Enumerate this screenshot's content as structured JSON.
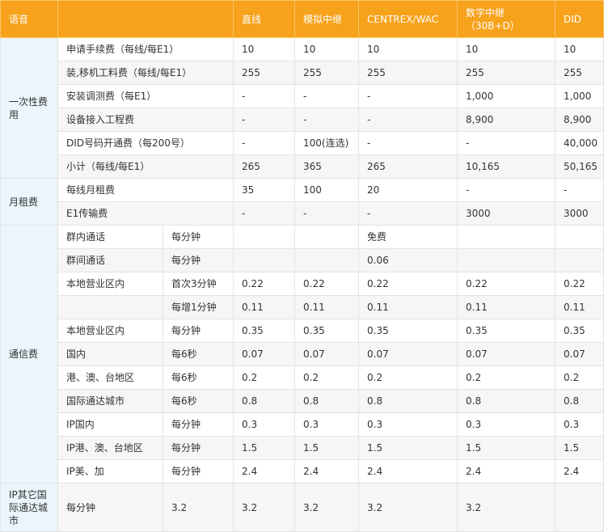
{
  "table": {
    "header": {
      "corner": "语音",
      "columns": [
        "直线",
        "模拟中继",
        "CENTREX/WAC",
        "数字中继\n（30B+D）",
        "DID"
      ]
    },
    "sections": [
      {
        "category": "一次性费用",
        "rows": [
          [
            "申请手续费（每线/每E1）",
            10,
            10,
            10,
            10,
            10
          ],
          [
            "装,移机工料费（每线/每E1）",
            255,
            255,
            255,
            255,
            255
          ],
          [
            "安装调测费（每E1）",
            "-",
            "-",
            "-",
            "1,000",
            "1,000"
          ],
          [
            "设备接入工程费",
            "-",
            "-",
            "-",
            "8,900",
            "8,900"
          ],
          [
            "DID号码开通费（每200号）",
            "-",
            "100(连选)",
            "-",
            "-",
            "40,000"
          ],
          [
            "小计（每线/每E1）",
            265,
            365,
            265,
            "10,165",
            "50,165"
          ]
        ]
      },
      {
        "category": "月租费",
        "rows": [
          [
            "每线月租费",
            35,
            100,
            20,
            "-",
            "-"
          ],
          [
            "E1传输费",
            "-",
            "-",
            "-",
            3000,
            3000
          ]
        ]
      },
      {
        "category": "通信费",
        "rows": [
          [
            "群内通话",
            "每分钟",
            null,
            null,
            "免费",
            null,
            null
          ],
          [
            "群间通话",
            "每分钟",
            null,
            null,
            0.06,
            null,
            null
          ],
          [
            "本地营业区内",
            "首次3分钟",
            0.22,
            0.22,
            0.22,
            0.22,
            0.22
          ],
          [
            null,
            "每增1分钟",
            0.11,
            0.11,
            0.11,
            0.11,
            0.11
          ],
          [
            "本地营业区内",
            "每分钟",
            0.35,
            0.35,
            0.35,
            0.35,
            0.35
          ],
          [
            "国内",
            "每6秒",
            0.07,
            0.07,
            0.07,
            0.07,
            0.07
          ],
          [
            "港、澳、台地区",
            "每6秒",
            0.2,
            0.2,
            0.2,
            0.2,
            0.2
          ],
          [
            "国际通达城市",
            "每6秒",
            0.8,
            0.8,
            0.8,
            0.8,
            0.8
          ],
          [
            "IP国内",
            "每分钟",
            0.3,
            0.3,
            0.3,
            0.3,
            0.3
          ],
          [
            "IP港、澳、台地区",
            "每分钟",
            1.5,
            1.5,
            1.5,
            1.5,
            1.5
          ],
          [
            "IP美、加",
            "每分钟",
            2.4,
            2.4,
            2.4,
            2.4,
            2.4
          ]
        ]
      },
      {
        "category": "IP其它国际通达城市",
        "rows": [
          [
            "每分钟",
            3.2,
            3.2,
            3.2,
            3.2,
            3.2,
            null
          ]
        ]
      }
    ]
  }
}
